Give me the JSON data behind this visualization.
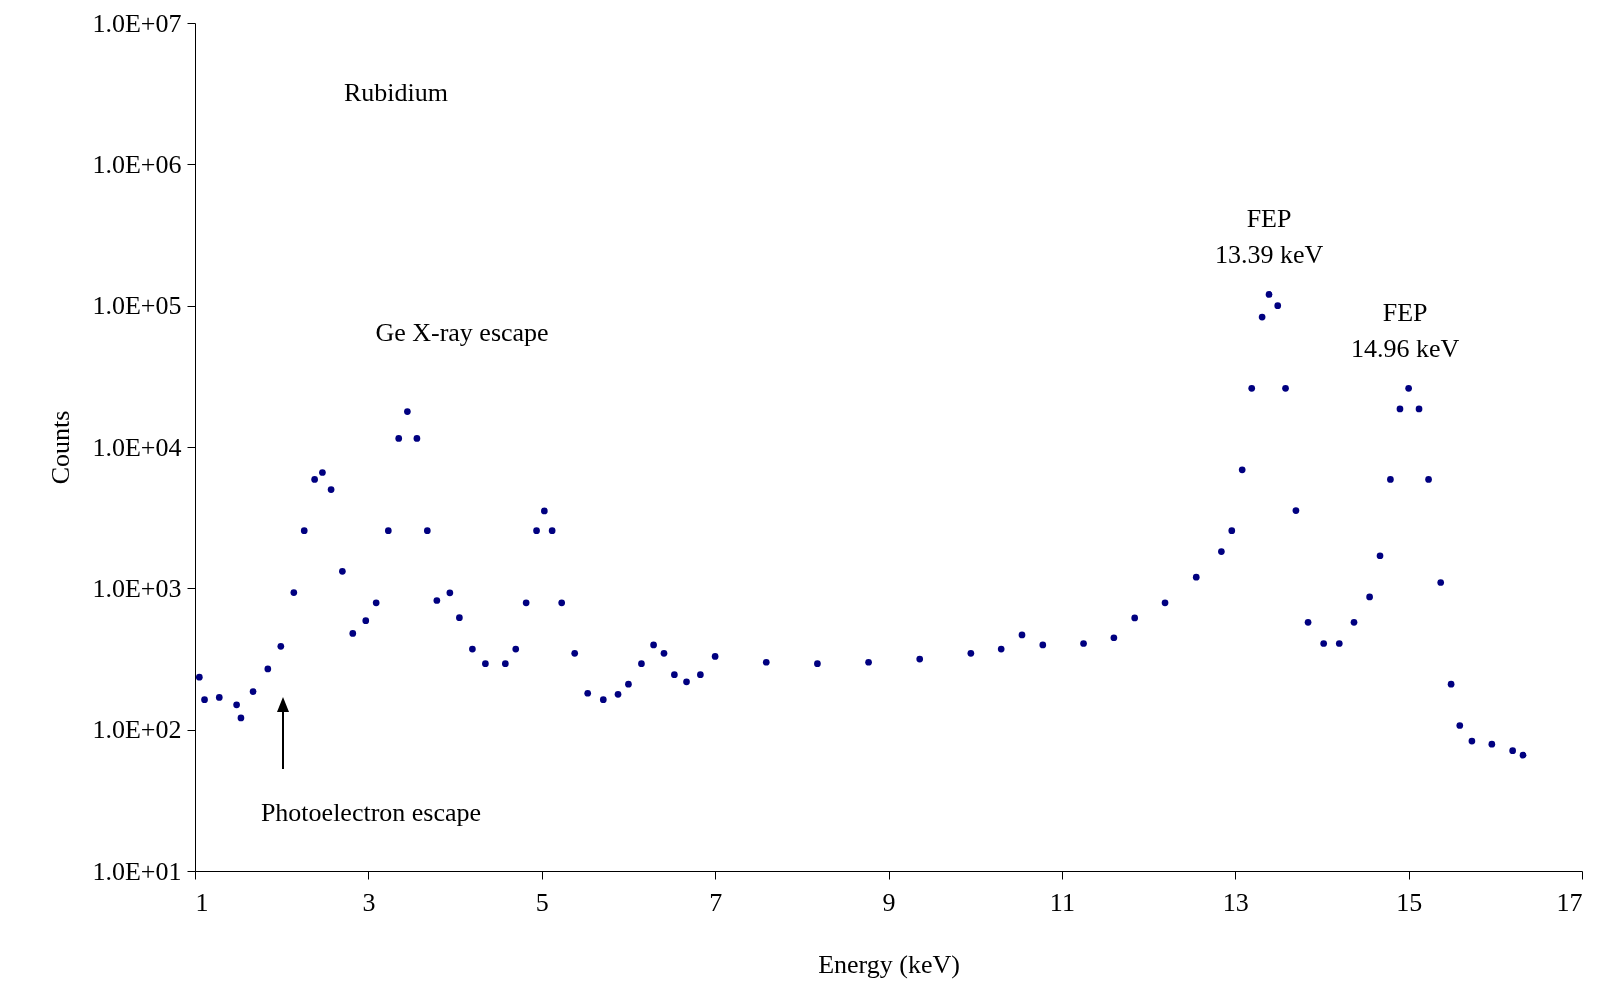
{
  "chart_data": {
    "type": "scatter",
    "xlabel": "Energy (keV)",
    "ylabel": "Counts",
    "annotations": [
      "Rubidium",
      "Ge X-ray escape",
      "Photoelectron escape",
      {
        "text": "FEP\n13.39 keV",
        "x": 13.39,
        "y": 120000
      },
      {
        "text": "FEP\n14.96 keV",
        "x": 14.96,
        "y": 26000
      }
    ],
    "x": [
      1.05,
      1.11,
      1.28,
      1.48,
      1.53,
      1.67,
      1.84,
      1.99,
      2.14,
      2.26,
      2.38,
      2.47,
      2.57,
      2.7,
      2.82,
      2.97,
      3.09,
      3.23,
      3.35,
      3.45,
      3.56,
      3.68,
      3.79,
      3.94,
      4.05,
      4.2,
      4.35,
      4.58,
      4.7,
      4.82,
      4.94,
      5.03,
      5.12,
      5.23,
      5.38,
      5.53,
      5.71,
      5.88,
      6.0,
      6.15,
      6.29,
      6.41,
      6.53,
      6.67,
      6.83,
      7.0,
      7.59,
      8.18,
      8.77,
      9.36,
      9.95,
      10.3,
      10.54,
      10.78,
      11.25,
      11.6,
      11.84,
      12.19,
      12.55,
      12.84,
      12.96,
      13.08,
      13.19,
      13.31,
      13.39,
      13.49,
      13.58,
      13.7,
      13.84,
      14.02,
      14.2,
      14.37,
      14.55,
      14.67,
      14.79,
      14.9,
      15.0,
      15.12,
      15.23,
      15.37,
      15.49,
      15.59,
      15.73,
      15.96,
      16.2,
      16.32
    ],
    "series": [
      {
        "color": "#000080",
        "values": [
          235,
          163,
          169,
          150,
          121,
          186,
          269,
          389,
          933,
          2560,
          5900,
          6600,
          5000,
          1320,
          480,
          590,
          790,
          2560,
          11500,
          17800,
          11500,
          2560,
          820,
          930,
          620,
          372,
          293,
          293,
          372,
          790,
          2560,
          3530,
          2560,
          790,
          347,
          181,
          163,
          178,
          210,
          293,
          398,
          347,
          245,
          218,
          245,
          330,
          300,
          293,
          300,
          316,
          347,
          372,
          468,
          398,
          407,
          447,
          617,
          790,
          1200,
          1820,
          2560,
          6900,
          26000,
          83000,
          120000,
          100000,
          26000,
          3550,
          575,
          407,
          407,
          575,
          870,
          1700,
          5900,
          18600,
          26000,
          18600,
          5900,
          1100,
          210,
          107,
          83,
          79,
          71,
          66
        ]
      }
    ],
    "xlim": [
      1,
      17
    ],
    "xticks": [
      1,
      3,
      5,
      7,
      9,
      11,
      13,
      15,
      17
    ],
    "ylim": [
      10,
      10000000
    ],
    "log": true,
    "yticks": [
      {
        "value": 10,
        "label": "1.0E+01"
      },
      {
        "value": 100,
        "label": "1.0E+02"
      },
      {
        "value": 1000,
        "label": "1.0E+03"
      },
      {
        "value": 10000,
        "label": "1.0E+04"
      },
      {
        "value": 100000,
        "label": "1.0E+05"
      },
      {
        "value": 1000000,
        "label": "1.0E+06"
      },
      {
        "value": 10000000,
        "label": "1.0E+07"
      }
    ],
    "grid": false,
    "marker": "circle"
  }
}
